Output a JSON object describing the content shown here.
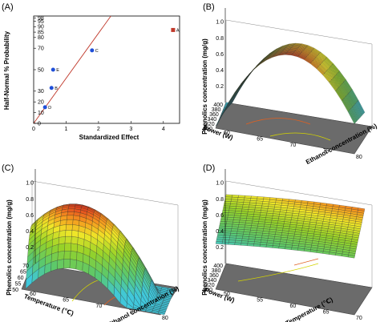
{
  "chart_data": [
    {
      "panel": "(A)",
      "type": "scatter",
      "xlabel": "Standardized Effect",
      "ylabel": "Half-Normal % Probability",
      "xlim": [
        0,
        4.5
      ],
      "xticks": [
        "0",
        "1",
        "2",
        "3",
        "4"
      ],
      "yticks": [
        "0",
        "10",
        "20",
        "30",
        "50",
        "70",
        "80",
        "85",
        "90",
        "95",
        "98"
      ],
      "points": [
        {
          "label": "A",
          "x": 4.3,
          "y": 87,
          "color": "#c0392b",
          "marker": "square"
        },
        {
          "label": "B",
          "x": 0.55,
          "y": 33,
          "color": "#1f4fd8",
          "marker": "circle"
        },
        {
          "label": "C",
          "x": 1.8,
          "y": 68,
          "color": "#1f4fd8",
          "marker": "circle"
        },
        {
          "label": "D",
          "x": 0.35,
          "y": 15,
          "color": "#1f4fd8",
          "marker": "circle"
        },
        {
          "label": "E",
          "x": 0.6,
          "y": 50,
          "color": "#1f4fd8",
          "marker": "circle"
        }
      ],
      "reference_line": {
        "from": [
          0,
          0
        ],
        "slope_per_effect": 42,
        "color": "#c0392b"
      }
    },
    {
      "panel": "(B)",
      "type": "surface",
      "zlabel": "Phenolics concentration (mg/g)",
      "zticks": [
        "0.2",
        "0.4",
        "0.6",
        "0.8",
        "1.0"
      ],
      "x_axis": {
        "label": "Power (W)",
        "ticks": [
          "400",
          "380",
          "360",
          "340",
          "320",
          "300"
        ]
      },
      "y_axis": {
        "label": "Ethanol concentration (%)",
        "ticks": [
          "60",
          "65",
          "70",
          "75",
          "80"
        ]
      },
      "surface": {
        "shape": "ridge",
        "min": 0.35,
        "max": 1.0
      }
    },
    {
      "panel": "(C)",
      "type": "surface",
      "zlabel": "Phenolics concentration (mg/g)",
      "zticks": [
        "0.2",
        "0.4",
        "0.6",
        "0.8",
        "1.0"
      ],
      "x_axis": {
        "label": "Temperature (℃)",
        "ticks": [
          "70",
          "65",
          "60",
          "55",
          "50"
        ]
      },
      "y_axis": {
        "label": "Ethanol concentration (%)",
        "ticks": [
          "60",
          "65",
          "70",
          "75",
          "80"
        ]
      },
      "surface": {
        "shape": "peak",
        "min": 0.2,
        "max": 1.0
      }
    },
    {
      "panel": "(D)",
      "type": "surface",
      "zlabel": "Phenolics concentration (mg/g)",
      "zticks": [
        "0.2",
        "0.4",
        "0.6",
        "0.8",
        "1.0"
      ],
      "x_axis": {
        "label": "Power (W)",
        "ticks": [
          "400",
          "380",
          "360",
          "340",
          "320",
          "300"
        ]
      },
      "y_axis": {
        "label": "Temperature (℃)",
        "ticks": [
          "50",
          "55",
          "60",
          "65",
          "70"
        ]
      },
      "surface": {
        "shape": "plane",
        "min": 0.55,
        "max": 0.95
      }
    }
  ]
}
